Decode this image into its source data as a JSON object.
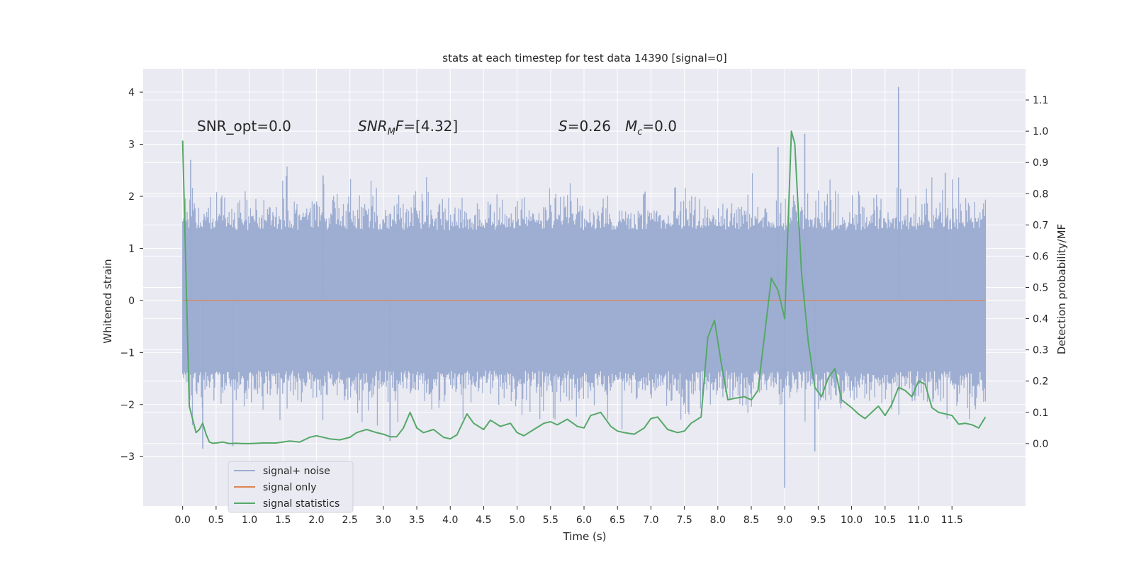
{
  "chart_data": {
    "type": "line",
    "title": "stats at each timestep for test data 14390 [signal=0]",
    "xlabel": "Time (s)",
    "ylabel": "Whitened strain",
    "ylabel_right": "Detection probability/MF",
    "xlim": [
      -0.59,
      12.6
    ],
    "ylim": [
      -3.95,
      4.45
    ],
    "ylim_right": [
      -0.2,
      1.2
    ],
    "x_ticks": [
      0.0,
      0.5,
      1.0,
      1.5,
      2.0,
      2.5,
      3.0,
      3.5,
      4.0,
      4.5,
      5.0,
      5.5,
      6.0,
      6.5,
      7.0,
      7.5,
      8.0,
      8.5,
      9.0,
      9.5,
      10.0,
      10.5,
      11.0,
      11.5
    ],
    "x_tick_labels": [
      "0.0",
      "0.5",
      "1.0",
      "1.5",
      "2.0",
      "2.5",
      "3.0",
      "3.5",
      "4.0",
      "4.5",
      "5.0",
      "5.5",
      "6.0",
      "6.5",
      "7.0",
      "7.5",
      "8.0",
      "8.5",
      "9.0",
      "9.5",
      "10.0",
      "10.5",
      "11.0",
      "11.5"
    ],
    "y_ticks": [
      4,
      3,
      2,
      1,
      0,
      -1,
      -2,
      -3
    ],
    "y_tick_labels": [
      "4",
      "3",
      "2",
      "1",
      "0",
      "−1",
      "−2",
      "−3"
    ],
    "y_ticks_right": [
      1.1,
      1.0,
      0.9,
      0.8,
      0.7,
      0.6,
      0.5,
      0.4,
      0.3,
      0.2,
      0.1,
      0.0
    ],
    "y_tick_labels_right": [
      "1.1",
      "1.0",
      "0.9",
      "0.8",
      "0.7",
      "0.6",
      "0.5",
      "0.4",
      "0.3",
      "0.2",
      "0.1",
      "0.0"
    ],
    "grid": true,
    "legend_position": "lower-left",
    "annotations": {
      "snr_opt": "SNR_opt=0.0",
      "snr_mf_sym": "SNR",
      "snr_mf_sub": "M",
      "snr_mf_sym2": "F",
      "snr_mf_val": "=[4.32]",
      "s_sym": "S",
      "s_val": "=0.26",
      "mc_sym": "M",
      "mc_sub": "c",
      "mc_val": "=0.0"
    },
    "series": [
      {
        "name": "signal+ noise",
        "color": "#9AABD0",
        "axis": "left",
        "description": "whitened noise, roughly ±1.5 band with spikes",
        "x_range": [
          0.0,
          12.0
        ],
        "spikes": [
          {
            "x": 0.12,
            "y": 2.7
          },
          {
            "x": 0.3,
            "y": -2.85
          },
          {
            "x": 0.75,
            "y": -2.8
          },
          {
            "x": 2.1,
            "y": 2.4
          },
          {
            "x": 3.1,
            "y": -2.7
          },
          {
            "x": 8.9,
            "y": 2.95
          },
          {
            "x": 9.0,
            "y": -3.6
          },
          {
            "x": 9.3,
            "y": 3.2
          },
          {
            "x": 9.45,
            "y": -2.9
          },
          {
            "x": 10.7,
            "y": 4.1
          },
          {
            "x": 11.4,
            "y": 2.45
          }
        ]
      },
      {
        "name": "signal only",
        "color": "#DD8452",
        "axis": "left",
        "x": [
          0.0,
          12.0
        ],
        "y": [
          0.0,
          0.0
        ]
      },
      {
        "name": "signal statistics",
        "color": "#55A868",
        "axis": "right",
        "x": [
          0.0,
          0.1,
          0.2,
          0.25,
          0.3,
          0.35,
          0.4,
          0.45,
          0.5,
          0.6,
          0.7,
          0.8,
          0.9,
          1.0,
          1.2,
          1.4,
          1.6,
          1.75,
          1.9,
          2.0,
          2.2,
          2.35,
          2.5,
          2.6,
          2.75,
          2.9,
          3.0,
          3.1,
          3.2,
          3.3,
          3.4,
          3.5,
          3.6,
          3.75,
          3.9,
          4.0,
          4.1,
          4.25,
          4.35,
          4.5,
          4.6,
          4.75,
          4.9,
          5.0,
          5.1,
          5.25,
          5.4,
          5.5,
          5.6,
          5.75,
          5.9,
          6.0,
          6.1,
          6.25,
          6.4,
          6.5,
          6.6,
          6.75,
          6.9,
          7.0,
          7.1,
          7.25,
          7.4,
          7.5,
          7.6,
          7.75,
          7.85,
          7.95,
          8.05,
          8.15,
          8.25,
          8.4,
          8.5,
          8.6,
          8.7,
          8.8,
          8.9,
          9.0,
          9.1,
          9.15,
          9.25,
          9.35,
          9.45,
          9.55,
          9.65,
          9.75,
          9.85,
          10.0,
          10.1,
          10.2,
          10.3,
          10.4,
          10.5,
          10.6,
          10.7,
          10.8,
          10.9,
          11.0,
          11.1,
          11.2,
          11.3,
          11.4,
          11.5,
          11.6,
          11.7,
          11.8,
          11.9,
          12.0
        ],
        "y": [
          0.97,
          0.12,
          0.035,
          0.045,
          0.065,
          0.03,
          0.005,
          0.001,
          0.002,
          0.005,
          0.0,
          0.001,
          0.0,
          0.0,
          0.002,
          0.002,
          0.008,
          0.005,
          0.02,
          0.025,
          0.015,
          0.012,
          0.02,
          0.035,
          0.045,
          0.035,
          0.03,
          0.022,
          0.022,
          0.05,
          0.1,
          0.05,
          0.035,
          0.045,
          0.02,
          0.015,
          0.028,
          0.095,
          0.065,
          0.045,
          0.075,
          0.055,
          0.065,
          0.035,
          0.025,
          0.045,
          0.065,
          0.07,
          0.06,
          0.078,
          0.055,
          0.05,
          0.09,
          0.1,
          0.055,
          0.04,
          0.035,
          0.03,
          0.05,
          0.08,
          0.085,
          0.045,
          0.035,
          0.04,
          0.065,
          0.085,
          0.34,
          0.395,
          0.26,
          0.14,
          0.145,
          0.15,
          0.14,
          0.17,
          0.35,
          0.53,
          0.49,
          0.4,
          1.0,
          0.96,
          0.55,
          0.33,
          0.18,
          0.15,
          0.21,
          0.24,
          0.14,
          0.115,
          0.095,
          0.08,
          0.1,
          0.12,
          0.09,
          0.125,
          0.18,
          0.17,
          0.15,
          0.2,
          0.19,
          0.115,
          0.1,
          0.095,
          0.09,
          0.062,
          0.065,
          0.06,
          0.05,
          0.085
        ]
      }
    ]
  }
}
